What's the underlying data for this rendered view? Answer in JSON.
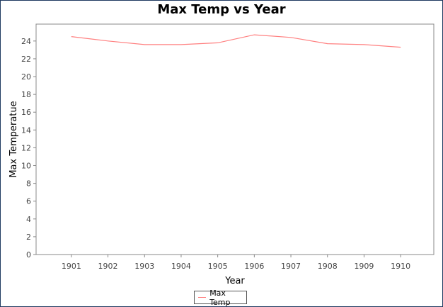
{
  "chart_data": {
    "type": "line",
    "title": "Max Temp vs Year",
    "xlabel": "Year",
    "ylabel": "Max Temperatue",
    "categories": [
      "1901",
      "1902",
      "1903",
      "1904",
      "1905",
      "1906",
      "1907",
      "1908",
      "1909",
      "1910"
    ],
    "series": [
      {
        "name": "Max Temp",
        "color": "#ff8080",
        "values": [
          24.5,
          24.0,
          23.6,
          23.6,
          23.8,
          24.7,
          24.4,
          23.7,
          23.6,
          23.3
        ]
      }
    ],
    "ylim": [
      0,
      25.9
    ],
    "yticks": [
      "0",
      "2",
      "4",
      "6",
      "8",
      "10",
      "12",
      "14",
      "16",
      "18",
      "20",
      "22",
      "24"
    ],
    "grid": false,
    "legend": "bottom-center"
  }
}
